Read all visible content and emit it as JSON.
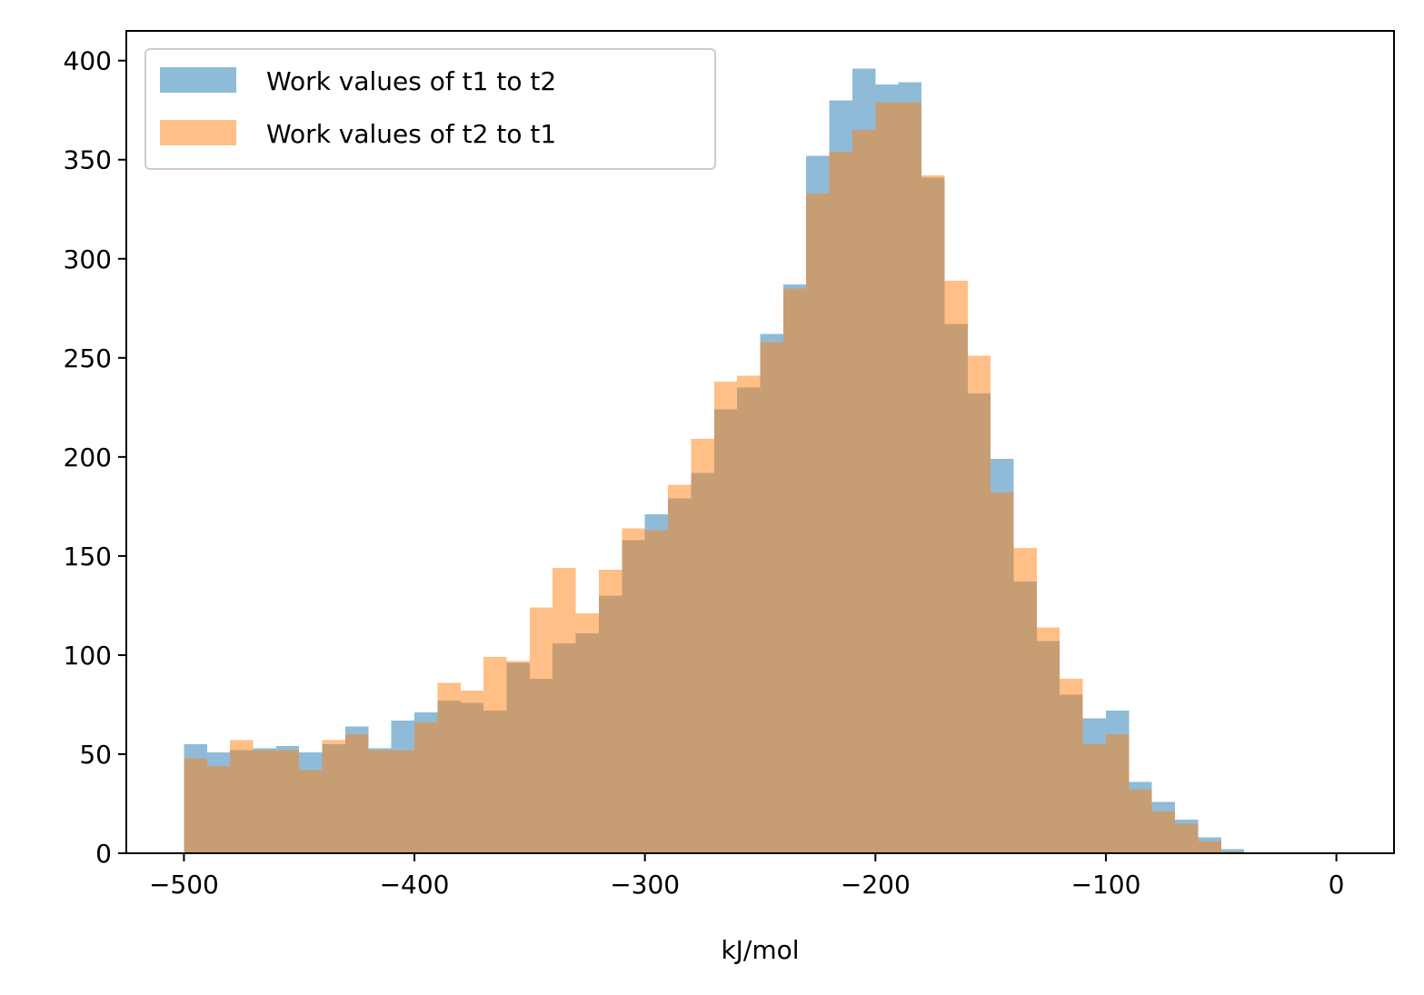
{
  "chart_data": {
    "type": "bar",
    "title": "",
    "xlabel": "kJ/mol",
    "ylabel": "",
    "xlim": [
      -525,
      25
    ],
    "ylim": [
      0,
      415
    ],
    "xticks": [
      -500,
      -400,
      -300,
      -200,
      -100,
      0
    ],
    "xtick_labels": [
      "−500",
      "−400",
      "−300",
      "−200",
      "−100",
      "0"
    ],
    "yticks": [
      0,
      50,
      100,
      150,
      200,
      250,
      300,
      350,
      400
    ],
    "ytick_labels": [
      "0",
      "50",
      "100",
      "150",
      "200",
      "250",
      "300",
      "350",
      "400"
    ],
    "grid": false,
    "legend_position": "top-left",
    "bin_start": -500,
    "bin_width": 10,
    "series": [
      {
        "name": "Work values of t1 to t2",
        "color": "#1f77b4",
        "alpha": 0.5,
        "values": [
          55,
          51,
          52,
          53,
          54,
          51,
          55,
          64,
          53,
          67,
          71,
          77,
          76,
          72,
          96,
          88,
          106,
          111,
          130,
          158,
          171,
          179,
          192,
          224,
          235,
          262,
          287,
          352,
          380,
          396,
          388,
          389,
          341,
          267,
          232,
          199,
          137,
          107,
          80,
          68,
          72,
          36,
          26,
          17,
          8,
          2,
          0,
          0,
          0,
          0
        ]
      },
      {
        "name": "Work values of t2 to t1",
        "color": "#ff7f0e",
        "alpha": 0.5,
        "values": [
          48,
          44,
          57,
          52,
          52,
          42,
          57,
          60,
          52,
          52,
          66,
          86,
          82,
          99,
          97,
          124,
          144,
          121,
          143,
          164,
          163,
          186,
          209,
          238,
          241,
          258,
          285,
          333,
          354,
          365,
          379,
          379,
          342,
          289,
          251,
          182,
          154,
          114,
          88,
          55,
          60,
          32,
          21,
          15,
          6,
          1,
          0,
          0,
          0,
          0
        ]
      }
    ]
  }
}
